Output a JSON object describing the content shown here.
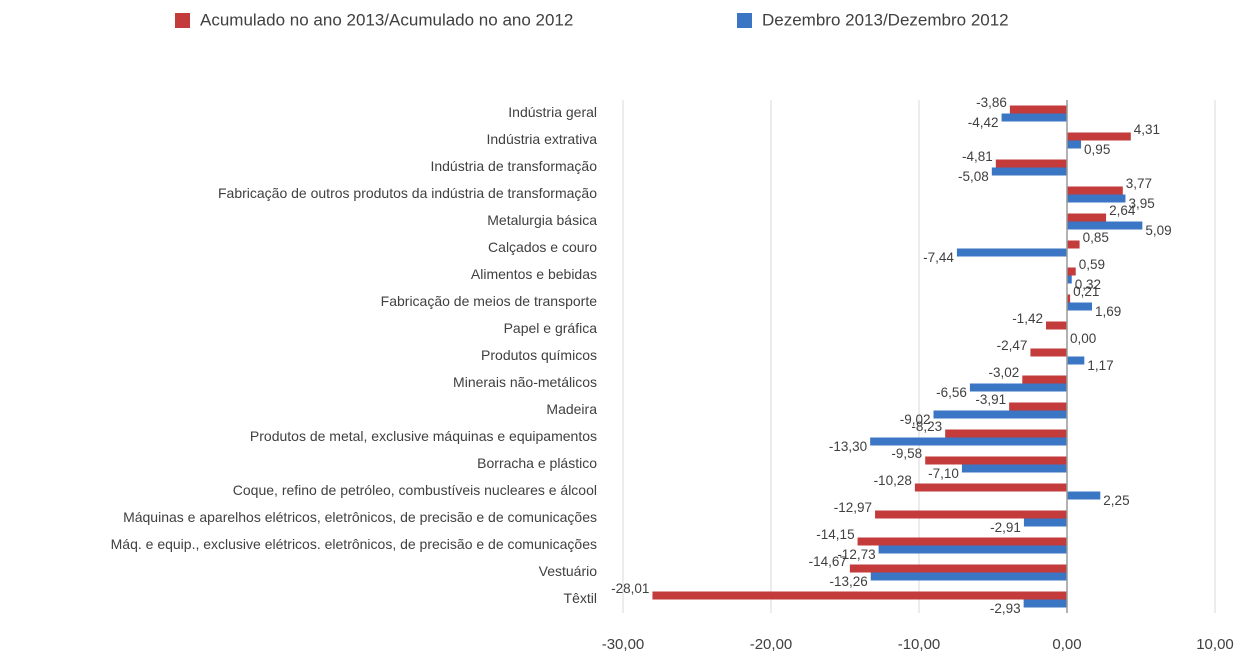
{
  "chart_data": {
    "type": "bar",
    "orientation": "horizontal",
    "categories": [
      "Indústria geral",
      "Indústria extrativa",
      "Indústria de transformação",
      "Fabricação de outros produtos da indústria de transformação",
      "Metalurgia básica",
      "Calçados e couro",
      "Alimentos e bebidas",
      "Fabricação de meios de transporte",
      "Papel e gráfica",
      "Produtos químicos",
      "Minerais não-metálicos",
      "Madeira",
      "Produtos de metal, exclusive máquinas e equipamentos",
      "Borracha e plástico",
      "Coque, refino de petróleo, combustíveis nucleares e álcool",
      "Máquinas e aparelhos elétricos, eletrônicos, de precisão e de comunicações",
      "Máq. e equip., exclusive elétricos. eletrônicos, de precisão e de comunicações",
      "Vestuário",
      "Têxtil"
    ],
    "series": [
      {
        "name": "Acumulado no ano 2013/Acumulado no ano 2012",
        "color": "#c33b3b",
        "values": [
          -3.86,
          4.31,
          -4.81,
          3.77,
          2.64,
          0.85,
          0.59,
          0.21,
          -1.42,
          -2.47,
          -3.02,
          -3.91,
          -8.23,
          -9.58,
          -10.28,
          -12.97,
          -14.15,
          -14.67,
          -28.01
        ],
        "value_labels": [
          "-3,86",
          "4,31",
          "-4,81",
          "3,77",
          "2,64",
          "0,85",
          "0,59",
          "0,21",
          "-1,42",
          "-2,47",
          "-3,02",
          "-3,91",
          "-8,23",
          "-9,58",
          "-10,28",
          "-12,97",
          "-14,15",
          "-14,67",
          "-28,01"
        ]
      },
      {
        "name": "Dezembro 2013/Dezembro 2012",
        "color": "#3a76c4",
        "values": [
          -4.42,
          0.95,
          -5.08,
          3.95,
          5.09,
          -7.44,
          0.32,
          1.69,
          0.0,
          1.17,
          -6.56,
          -9.02,
          -13.3,
          -7.1,
          2.25,
          -2.91,
          -12.73,
          -13.26,
          -2.93
        ],
        "value_labels": [
          "-4,42",
          "0,95",
          "-5,08",
          "3,95",
          "5,09",
          "-7,44",
          "0,32",
          "1,69",
          "0,00",
          "1,17",
          "-6,56",
          "-9,02",
          "-13,30",
          "-7,10",
          "2,25",
          "-2,91",
          "-12,73",
          "-13,26",
          "-2,93"
        ]
      }
    ],
    "xlim": [
      -30,
      10
    ],
    "xticks": [
      {
        "value": -30,
        "label": "-30,00"
      },
      {
        "value": -20,
        "label": "-20,00"
      },
      {
        "value": -10,
        "label": "-10,00"
      },
      {
        "value": 0,
        "label": "0,00"
      },
      {
        "value": 10,
        "label": "10,00"
      }
    ],
    "grid": true,
    "legend": "top"
  }
}
